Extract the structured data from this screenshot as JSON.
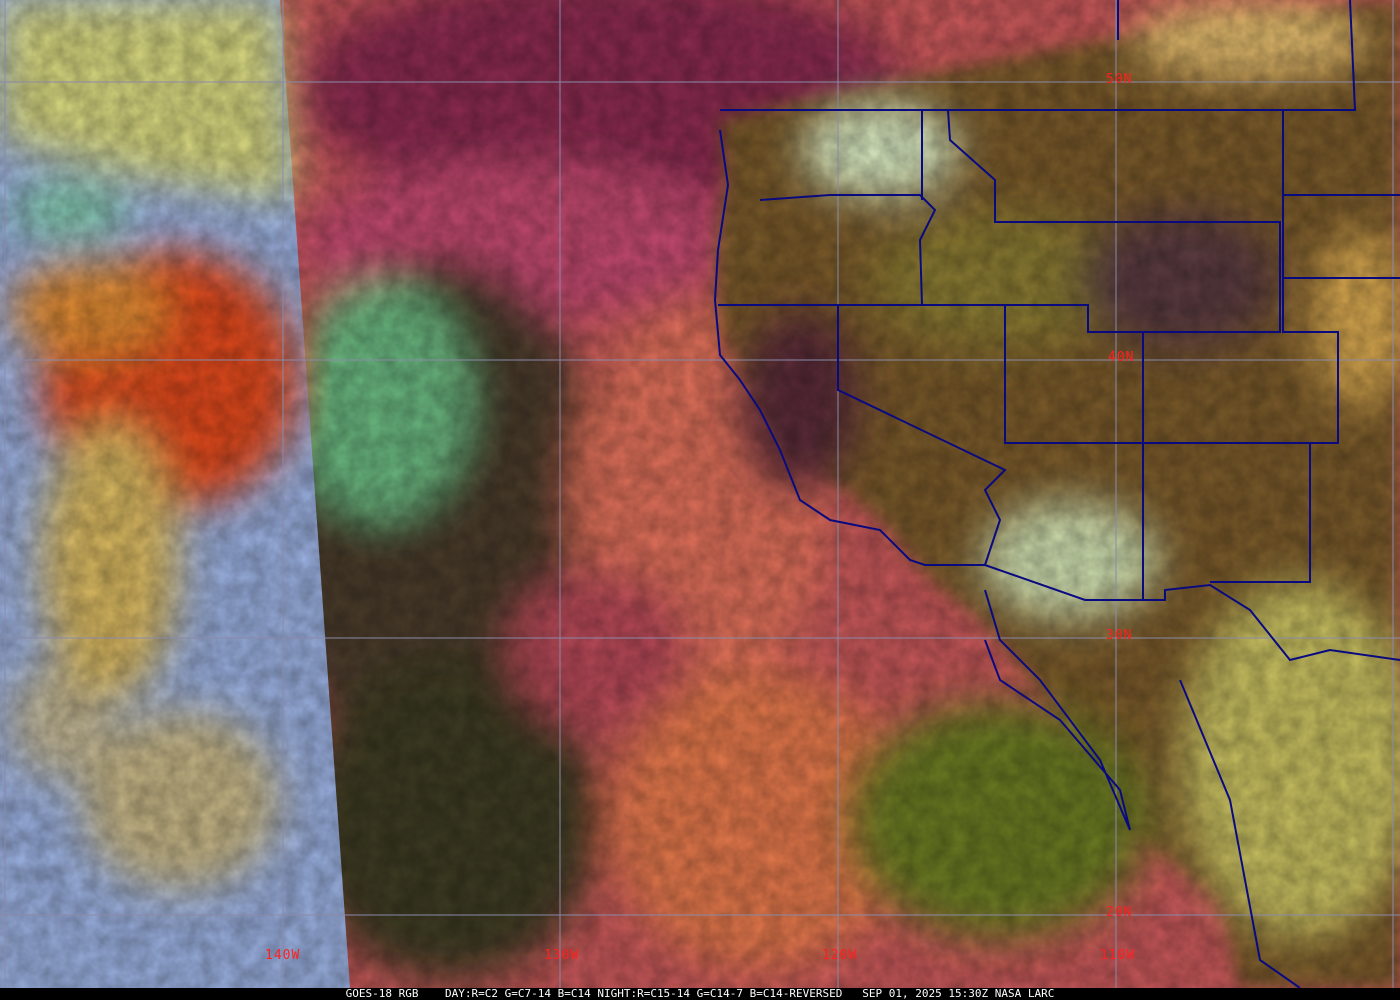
{
  "footer": {
    "satellite": "GOES-18 RGB",
    "recipe": "DAY:R=C2 G=C7-14 B=C14 NIGHT:R=C15-14 G=C14-7 B=C14-REVERSED",
    "timestamp": "SEP 01, 2025 15:30Z",
    "credit": "NASA LARC"
  },
  "grid": {
    "latitude_labels": [
      "50N",
      "40N",
      "30N",
      "20N"
    ],
    "longitude_labels": [
      "140W",
      "130W",
      "120W",
      "110W"
    ],
    "label_color": "#ff2020",
    "grid_color": "#8a8aa8",
    "border_color": "#0a0a80"
  }
}
